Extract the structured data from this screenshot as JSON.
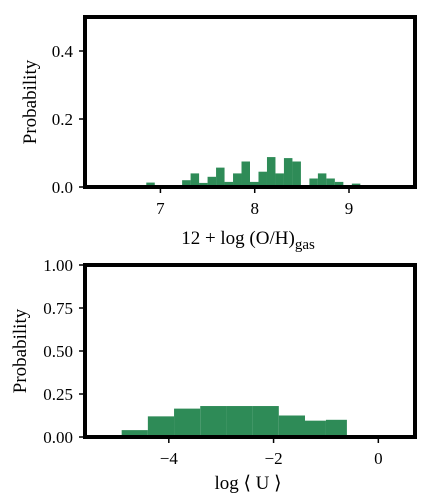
{
  "chart_data": [
    {
      "type": "bar",
      "ylabel": "Probability",
      "xlabel_main": "12 + log (O/H)",
      "xlabel_sub": "gas",
      "xlim": [
        6.2,
        9.7
      ],
      "ylim": [
        0,
        0.5
      ],
      "xticks": [
        7,
        8,
        9
      ],
      "yticks": [
        0.0,
        0.2,
        0.4
      ],
      "ytick_labels": [
        "0.0",
        "0.2",
        "0.4"
      ],
      "grid": false,
      "bar_color": "#2e8b57",
      "bins": [
        {
          "x0": 6.85,
          "x1": 6.94,
          "y": 0.013
        },
        {
          "x0": 6.94,
          "x1": 7.03,
          "y": 0.005
        },
        {
          "x0": 7.14,
          "x1": 7.23,
          "y": 0.005
        },
        {
          "x0": 7.23,
          "x1": 7.32,
          "y": 0.02
        },
        {
          "x0": 7.32,
          "x1": 7.41,
          "y": 0.04
        },
        {
          "x0": 7.41,
          "x1": 7.5,
          "y": 0.012
        },
        {
          "x0": 7.5,
          "x1": 7.59,
          "y": 0.03
        },
        {
          "x0": 7.59,
          "x1": 7.68,
          "y": 0.057
        },
        {
          "x0": 7.68,
          "x1": 7.77,
          "y": 0.015
        },
        {
          "x0": 7.77,
          "x1": 7.86,
          "y": 0.04
        },
        {
          "x0": 7.86,
          "x1": 7.95,
          "y": 0.075
        },
        {
          "x0": 7.95,
          "x1": 8.04,
          "y": 0.015
        },
        {
          "x0": 8.04,
          "x1": 8.13,
          "y": 0.045
        },
        {
          "x0": 8.13,
          "x1": 8.22,
          "y": 0.088
        },
        {
          "x0": 8.22,
          "x1": 8.31,
          "y": 0.04
        },
        {
          "x0": 8.31,
          "x1": 8.4,
          "y": 0.085
        },
        {
          "x0": 8.4,
          "x1": 8.49,
          "y": 0.075
        },
        {
          "x0": 8.49,
          "x1": 8.58,
          "y": 0.005
        },
        {
          "x0": 8.58,
          "x1": 8.67,
          "y": 0.025
        },
        {
          "x0": 8.67,
          "x1": 8.76,
          "y": 0.04
        },
        {
          "x0": 8.76,
          "x1": 8.85,
          "y": 0.025
        },
        {
          "x0": 8.85,
          "x1": 8.94,
          "y": 0.015
        },
        {
          "x0": 9.03,
          "x1": 9.12,
          "y": 0.01
        }
      ]
    },
    {
      "type": "bar",
      "ylabel": "Probability",
      "xlabel": "log ⟨ U ⟩",
      "xlim": [
        -5.6,
        0.7
      ],
      "ylim": [
        0,
        1.0
      ],
      "xticks": [
        -4,
        -2,
        0
      ],
      "xtick_labels": [
        "−4",
        "−2",
        "0"
      ],
      "yticks": [
        0.0,
        0.25,
        0.5,
        0.75,
        1.0
      ],
      "ytick_labels": [
        "0.00",
        "0.25",
        "0.50",
        "0.75",
        "1.00"
      ],
      "grid": false,
      "bar_color": "#2e8b57",
      "bins": [
        {
          "x0": -4.9,
          "x1": -4.4,
          "y": 0.04
        },
        {
          "x0": -4.4,
          "x1": -3.9,
          "y": 0.12
        },
        {
          "x0": -3.9,
          "x1": -3.4,
          "y": 0.165
        },
        {
          "x0": -3.4,
          "x1": -2.9,
          "y": 0.18
        },
        {
          "x0": -2.9,
          "x1": -2.4,
          "y": 0.18
        },
        {
          "x0": -2.4,
          "x1": -1.9,
          "y": 0.18
        },
        {
          "x0": -1.9,
          "x1": -1.4,
          "y": 0.125
        },
        {
          "x0": -1.4,
          "x1": -1.0,
          "y": 0.095
        },
        {
          "x0": -1.0,
          "x1": -0.6,
          "y": 0.1
        }
      ]
    }
  ]
}
